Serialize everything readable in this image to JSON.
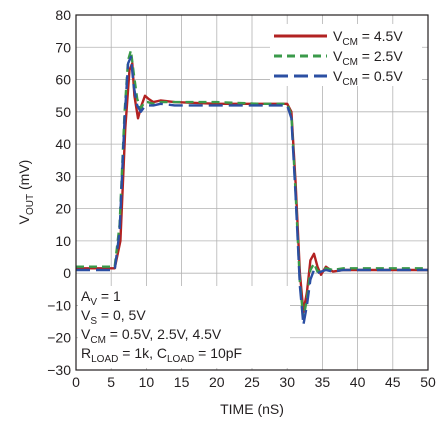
{
  "chart_data": {
    "type": "line",
    "title": "",
    "xlabel": {
      "text": "TIME (nS)"
    },
    "ylabel": {
      "main": "V",
      "sub": "OUT",
      "tail": " (mV)"
    },
    "xlim": [
      0,
      50
    ],
    "ylim": [
      -30,
      80
    ],
    "xticks": [
      "0",
      "5",
      "10",
      "15",
      "20",
      "25",
      "30",
      "35",
      "40",
      "45",
      "50"
    ],
    "yticks": [
      "−30",
      "−20",
      "−10",
      "0",
      "10",
      "20",
      "30",
      "40",
      "50",
      "60",
      "70",
      "80"
    ],
    "grid": true,
    "legend_position": "top-right",
    "series": [
      {
        "name": {
          "main": "V",
          "sub": "CM",
          "tail": " = 4.5V"
        },
        "color": "#b22222",
        "dash": "solid",
        "x": [
          0,
          5.5,
          6.3,
          7.0,
          7.6,
          8.0,
          8.3,
          8.8,
          9.3,
          9.8,
          10.3,
          11.0,
          12.0,
          14.0,
          20.0,
          26.0,
          30.0,
          30.6,
          31.2,
          31.8,
          32.3,
          32.8,
          33.3,
          33.8,
          34.3,
          34.8,
          35.5,
          36.5,
          38.0,
          40.0,
          45.0,
          50.0
        ],
        "y": [
          1.5,
          1.5,
          10,
          45,
          63,
          65,
          55,
          48,
          52,
          55,
          54,
          53,
          53.5,
          53,
          52.5,
          52.5,
          52.5,
          50,
          28,
          0,
          -12,
          -6,
          4,
          6,
          2,
          -0.5,
          2,
          0.5,
          1,
          1,
          1,
          1
        ]
      },
      {
        "name": {
          "main": "V",
          "sub": "CM",
          "tail": " = 2.5V"
        },
        "color": "#3a9a4a",
        "dash": "8,5",
        "x": [
          0,
          5.5,
          6.2,
          6.9,
          7.4,
          7.8,
          8.2,
          8.7,
          9.2,
          9.7,
          10.2,
          11.0,
          12.0,
          14.0,
          20.0,
          26.0,
          30.0,
          30.6,
          31.2,
          31.8,
          32.3,
          32.8,
          33.3,
          33.8,
          34.3,
          34.8,
          35.5,
          36.5,
          38.0,
          40.0,
          45.0,
          50.0
        ],
        "y": [
          2,
          2,
          15,
          50,
          66,
          69,
          62,
          54,
          51,
          53,
          53,
          52.5,
          53,
          53,
          53,
          52.5,
          52.5,
          49,
          25,
          -3,
          -14,
          -8,
          1,
          3,
          0.5,
          1,
          1.5,
          1,
          1.5,
          1.5,
          1.5,
          1.5
        ]
      },
      {
        "name": {
          "main": "V",
          "sub": "CM",
          "tail": " = 0.5V"
        },
        "color": "#2b4fa3",
        "dash": "14,6",
        "x": [
          0,
          5.5,
          6.2,
          6.9,
          7.4,
          7.8,
          8.2,
          8.7,
          9.2,
          9.7,
          10.2,
          11.0,
          12.0,
          14.0,
          20.0,
          26.0,
          30.0,
          30.6,
          31.2,
          31.8,
          32.3,
          32.8,
          33.3,
          33.8,
          34.3,
          34.8,
          35.5,
          36.5,
          38.0,
          40.0,
          45.0,
          50.0
        ],
        "y": [
          1,
          1,
          13,
          48,
          65,
          67,
          58,
          52,
          50,
          51.5,
          52,
          52,
          52.5,
          52,
          52,
          52,
          52,
          48,
          24,
          -4,
          -16,
          -10,
          -2,
          1,
          0,
          0.5,
          1,
          0.5,
          1,
          1,
          1,
          1
        ]
      }
    ],
    "annotation": [
      {
        "main": "A",
        "sub": "V",
        "tail": " = 1"
      },
      {
        "main": "V",
        "sub": "S",
        "tail": " = 0, 5V"
      },
      {
        "main": "V",
        "sub": "CM",
        "tail": " = 0.5V, 2.5V, 4.5V"
      },
      {
        "main": "R",
        "sub": "LOAD",
        "tail": " = 1k, C",
        "sub2": "LOAD",
        "tail2": " = 10pF"
      }
    ]
  }
}
